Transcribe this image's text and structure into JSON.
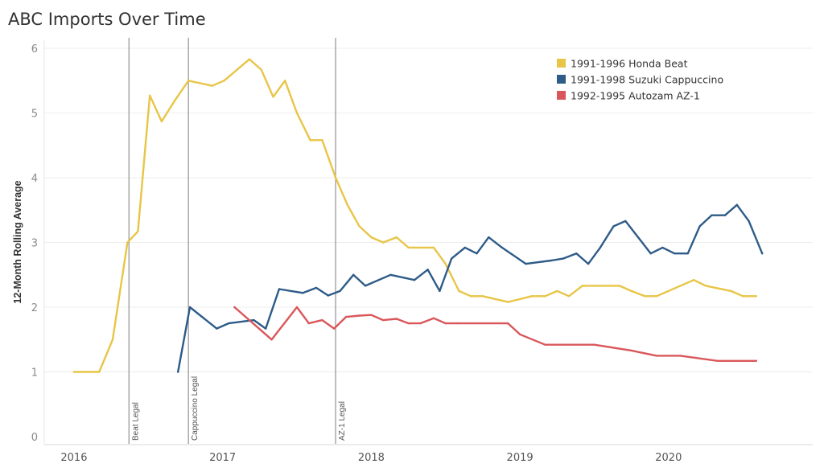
{
  "chart_data": {
    "type": "line",
    "title": "ABC Imports Over Time",
    "xlabel": "",
    "ylabel": "12-Month Rolling Average",
    "ylim": [
      0,
      6
    ],
    "xlim": [
      2015.8,
      2020.97
    ],
    "y_ticks": [
      "0",
      "1",
      "2",
      "3",
      "4",
      "5",
      "6"
    ],
    "x_ticks": [
      {
        "value": 2016.0,
        "label": "2016"
      },
      {
        "value": 2017.0,
        "label": "2017"
      },
      {
        "value": 2018.0,
        "label": "2018"
      },
      {
        "value": 2019.0,
        "label": "2019"
      },
      {
        "value": 2020.0,
        "label": "2020"
      }
    ],
    "grid": "horizontal",
    "legend_position": "top-right",
    "series": [
      {
        "name": "1991-1996 Honda Beat",
        "color": "#e8c547",
        "points": [
          [
            2016.0,
            1.0
          ],
          [
            2016.17,
            1.0
          ],
          [
            2016.26,
            1.5
          ],
          [
            2016.36,
            3.0
          ],
          [
            2016.43,
            3.17
          ],
          [
            2016.51,
            5.27
          ],
          [
            2016.59,
            4.87
          ],
          [
            2016.68,
            5.2
          ],
          [
            2016.77,
            5.5
          ],
          [
            2016.93,
            5.42
          ],
          [
            2017.01,
            5.5
          ],
          [
            2017.18,
            5.83
          ],
          [
            2017.26,
            5.67
          ],
          [
            2017.34,
            5.25
          ],
          [
            2017.42,
            5.5
          ],
          [
            2017.5,
            5.0
          ],
          [
            2017.59,
            4.58
          ],
          [
            2017.67,
            4.58
          ],
          [
            2017.76,
            4.0
          ],
          [
            2017.84,
            3.58
          ],
          [
            2017.92,
            3.25
          ],
          [
            2018.0,
            3.08
          ],
          [
            2018.08,
            3.0
          ],
          [
            2018.17,
            3.08
          ],
          [
            2018.25,
            2.92
          ],
          [
            2018.34,
            2.92
          ],
          [
            2018.42,
            2.92
          ],
          [
            2018.5,
            2.67
          ],
          [
            2018.59,
            2.25
          ],
          [
            2018.67,
            2.17
          ],
          [
            2018.75,
            2.17
          ],
          [
            2018.92,
            2.08
          ],
          [
            2019.08,
            2.17
          ],
          [
            2019.17,
            2.17
          ],
          [
            2019.25,
            2.25
          ],
          [
            2019.33,
            2.17
          ],
          [
            2019.42,
            2.33
          ],
          [
            2019.5,
            2.33
          ],
          [
            2019.67,
            2.33
          ],
          [
            2019.75,
            2.25
          ],
          [
            2019.84,
            2.17
          ],
          [
            2019.92,
            2.17
          ],
          [
            2020.17,
            2.42
          ],
          [
            2020.25,
            2.33
          ],
          [
            2020.42,
            2.25
          ],
          [
            2020.5,
            2.17
          ],
          [
            2020.59,
            2.17
          ]
        ]
      },
      {
        "name": "1991-1998 Suzuki Cappuccino",
        "color": "#2e5b88",
        "points": [
          [
            2016.7,
            1.0
          ],
          [
            2016.78,
            2.0
          ],
          [
            2016.96,
            1.67
          ],
          [
            2017.04,
            1.75
          ],
          [
            2017.21,
            1.8
          ],
          [
            2017.29,
            1.67
          ],
          [
            2017.38,
            2.28
          ],
          [
            2017.54,
            2.22
          ],
          [
            2017.63,
            2.3
          ],
          [
            2017.71,
            2.18
          ],
          [
            2017.79,
            2.25
          ],
          [
            2017.88,
            2.5
          ],
          [
            2017.96,
            2.33
          ],
          [
            2018.13,
            2.5
          ],
          [
            2018.29,
            2.42
          ],
          [
            2018.38,
            2.58
          ],
          [
            2018.46,
            2.25
          ],
          [
            2018.54,
            2.75
          ],
          [
            2018.63,
            2.92
          ],
          [
            2018.71,
            2.83
          ],
          [
            2018.79,
            3.08
          ],
          [
            2018.88,
            2.92
          ],
          [
            2019.04,
            2.67
          ],
          [
            2019.21,
            2.72
          ],
          [
            2019.29,
            2.75
          ],
          [
            2019.38,
            2.83
          ],
          [
            2019.46,
            2.67
          ],
          [
            2019.54,
            2.92
          ],
          [
            2019.63,
            3.25
          ],
          [
            2019.71,
            3.33
          ],
          [
            2019.88,
            2.83
          ],
          [
            2019.96,
            2.92
          ],
          [
            2020.04,
            2.83
          ],
          [
            2020.13,
            2.83
          ],
          [
            2020.21,
            3.25
          ],
          [
            2020.29,
            3.42
          ],
          [
            2020.38,
            3.42
          ],
          [
            2020.46,
            3.58
          ],
          [
            2020.54,
            3.33
          ],
          [
            2020.63,
            2.83
          ]
        ]
      },
      {
        "name": "1992-1995 Autozam AZ-1",
        "color": "#d9575b",
        "points": [
          [
            2017.08,
            2.0
          ],
          [
            2017.33,
            1.5
          ],
          [
            2017.5,
            2.0
          ],
          [
            2017.58,
            1.75
          ],
          [
            2017.67,
            1.8
          ],
          [
            2017.75,
            1.67
          ],
          [
            2017.83,
            1.85
          ],
          [
            2017.92,
            1.87
          ],
          [
            2018.0,
            1.88
          ],
          [
            2018.08,
            1.8
          ],
          [
            2018.17,
            1.82
          ],
          [
            2018.25,
            1.75
          ],
          [
            2018.33,
            1.75
          ],
          [
            2018.42,
            1.83
          ],
          [
            2018.5,
            1.75
          ],
          [
            2018.58,
            1.75
          ],
          [
            2018.92,
            1.75
          ],
          [
            2019.0,
            1.58
          ],
          [
            2019.17,
            1.42
          ],
          [
            2019.5,
            1.42
          ],
          [
            2019.75,
            1.33
          ],
          [
            2019.92,
            1.25
          ],
          [
            2020.08,
            1.25
          ],
          [
            2020.33,
            1.17
          ],
          [
            2020.59,
            1.17
          ]
        ]
      }
    ],
    "annotations": [
      {
        "x": 2016.37,
        "label": "Beat Legal"
      },
      {
        "x": 2016.77,
        "label": "Cappuccino Legal"
      },
      {
        "x": 2017.76,
        "label": "AZ-1 Legal"
      }
    ]
  }
}
